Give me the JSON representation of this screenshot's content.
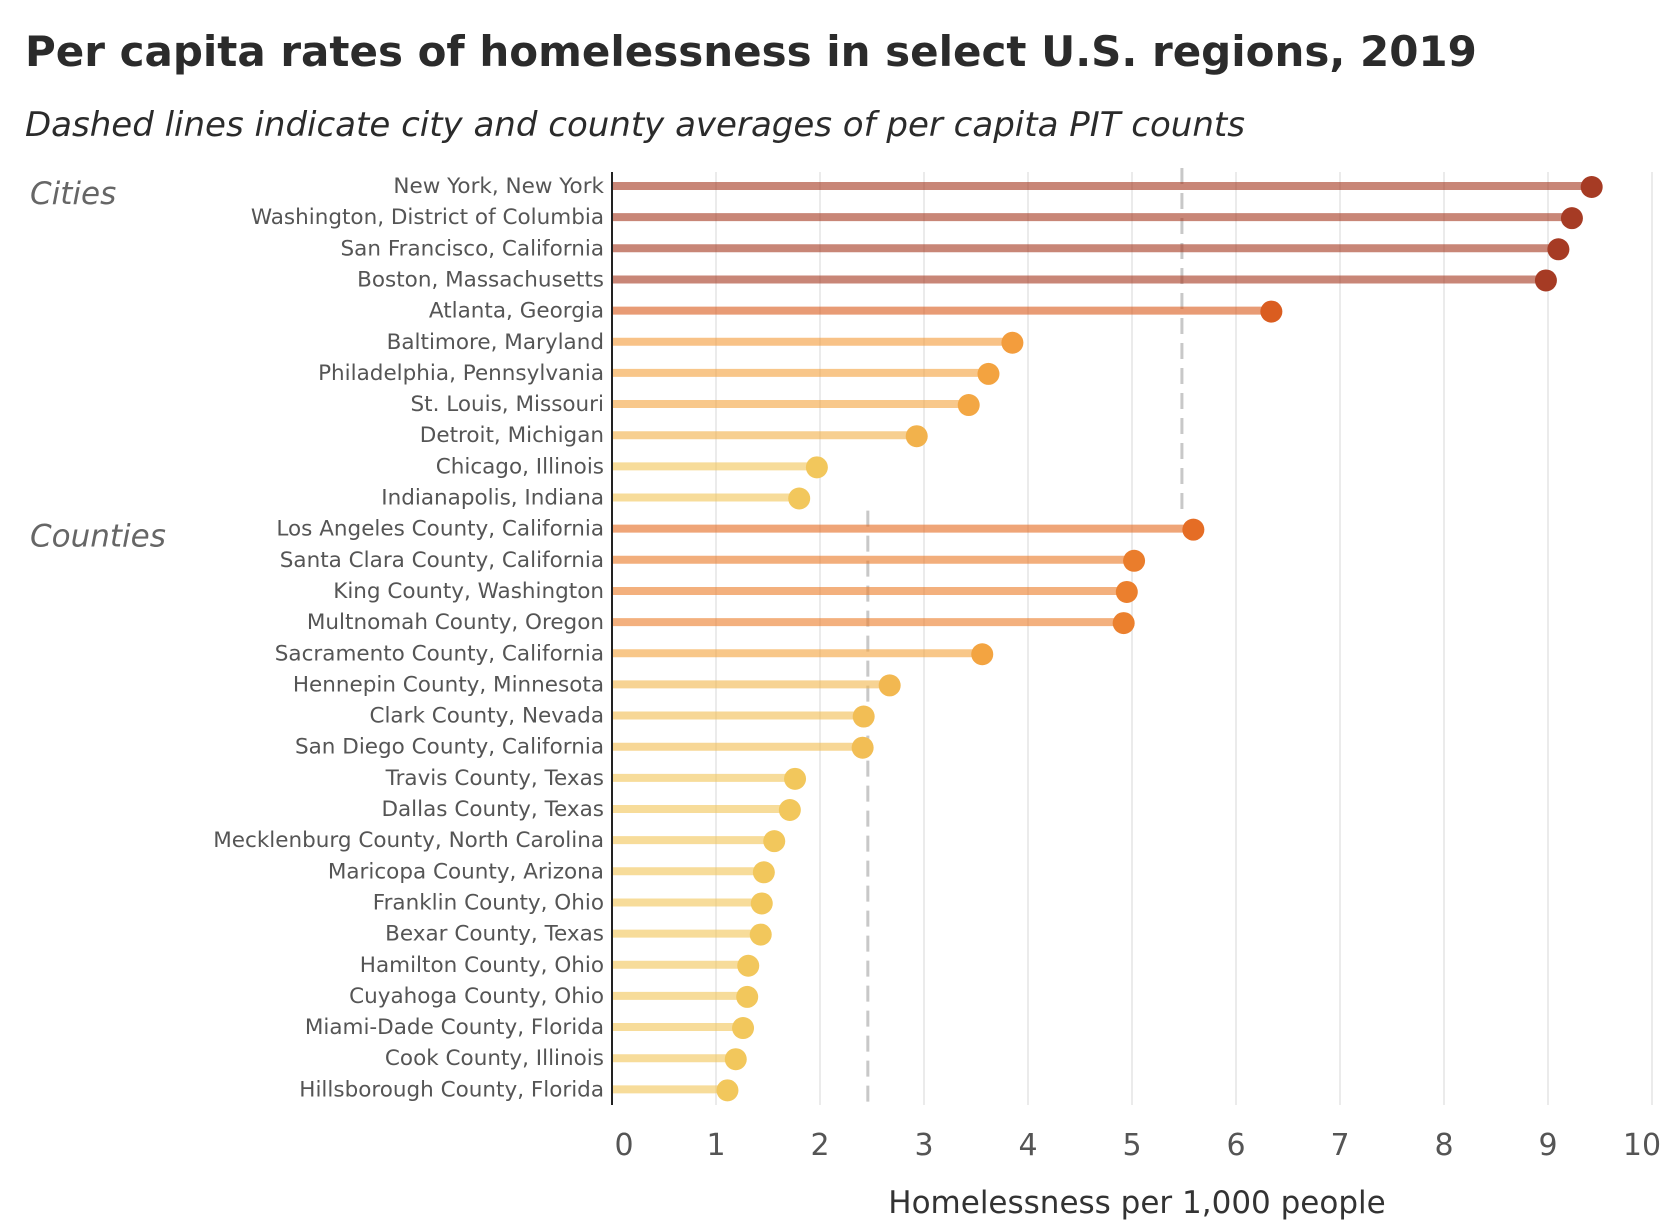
{
  "chart_data": {
    "type": "lollipop",
    "title": "Per capita rates of homelessness in select U.S. regions, 2019",
    "subtitle": "Dashed lines indicate city and county averages of per capita PIT counts",
    "xlabel": "Homelessness per 1,000 people",
    "xlim": [
      0,
      10
    ],
    "xticks": [
      "0",
      "1",
      "2",
      "3",
      "4",
      "5",
      "6",
      "7",
      "8",
      "9",
      "10"
    ],
    "grid": true,
    "groups": [
      {
        "name": "Cities",
        "average": 5.48,
        "items": [
          {
            "label": "New York, New York",
            "value": 9.42
          },
          {
            "label": "Washington, District of Columbia",
            "value": 9.23
          },
          {
            "label": "San Francisco, California",
            "value": 9.1
          },
          {
            "label": "Boston, Massachusetts",
            "value": 8.98
          },
          {
            "label": "Atlanta, Georgia",
            "value": 6.34
          },
          {
            "label": "Baltimore, Maryland",
            "value": 3.85
          },
          {
            "label": "Philadelphia, Pennsylvania",
            "value": 3.62
          },
          {
            "label": "St. Louis, Missouri",
            "value": 3.43
          },
          {
            "label": "Detroit, Michigan",
            "value": 2.93
          },
          {
            "label": "Chicago, Illinois",
            "value": 1.97
          },
          {
            "label": "Indianapolis, Indiana",
            "value": 1.8
          }
        ]
      },
      {
        "name": "Counties",
        "average": 2.46,
        "items": [
          {
            "label": "Los Angeles County, California",
            "value": 5.59
          },
          {
            "label": "Santa Clara County, California",
            "value": 5.02
          },
          {
            "label": "King County, Washington",
            "value": 4.95
          },
          {
            "label": "Multnomah County, Oregon",
            "value": 4.92
          },
          {
            "label": "Sacramento County, California",
            "value": 3.56
          },
          {
            "label": "Hennepin County, Minnesota",
            "value": 2.67
          },
          {
            "label": "Clark County, Nevada",
            "value": 2.42
          },
          {
            "label": "San Diego County, California",
            "value": 2.41
          },
          {
            "label": "Travis County, Texas",
            "value": 1.76
          },
          {
            "label": "Dallas County, Texas",
            "value": 1.71
          },
          {
            "label": "Mecklenburg County, North Carolina",
            "value": 1.56
          },
          {
            "label": "Maricopa County, Arizona",
            "value": 1.46
          },
          {
            "label": "Franklin County, Ohio",
            "value": 1.44
          },
          {
            "label": "Bexar County, Texas",
            "value": 1.43
          },
          {
            "label": "Hamilton County, Ohio",
            "value": 1.31
          },
          {
            "label": "Cuyahoga County, Ohio",
            "value": 1.3
          },
          {
            "label": "Miami-Dade County, Florida",
            "value": 1.26
          },
          {
            "label": "Cook County, Illinois",
            "value": 1.19
          },
          {
            "label": "Hillsborough County, Florida",
            "value": 1.11
          }
        ]
      }
    ],
    "colors": {
      "low": "#f2c75c",
      "mid": "#f39a3a",
      "high": "#e2621f",
      "top": "#a63b24",
      "average_line": "#c8c8c8",
      "grid": "#ebebeb",
      "axis": "#222222"
    }
  }
}
